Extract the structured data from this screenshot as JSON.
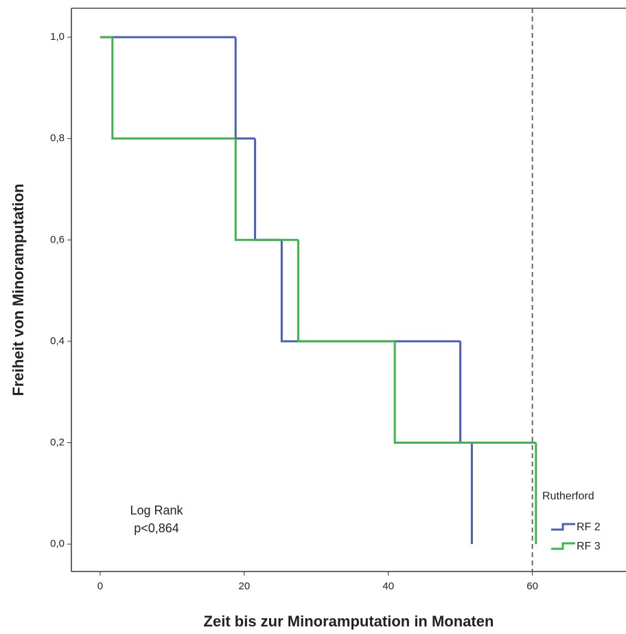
{
  "chart_data": {
    "type": "step",
    "xlabel": "Zeit bis zur Minoramputation in Monaten",
    "ylabel": "Freiheit von Minoramputation",
    "annotation": [
      "Log Rank",
      "p<0,864"
    ],
    "legend_title": "Rutherford",
    "legend_position": "lower right",
    "xlim": [
      -4,
      73
    ],
    "ylim": [
      -0.054,
      1.057
    ],
    "xticks": [
      0,
      20,
      40,
      60
    ],
    "yticks": [
      {
        "value": 0,
        "label": "0,0"
      },
      {
        "value": 0.2,
        "label": "0,2"
      },
      {
        "value": 0.4,
        "label": "0,4"
      },
      {
        "value": 0.6,
        "label": "0,6"
      },
      {
        "value": 0.8,
        "label": "0,8"
      },
      {
        "value": 1,
        "label": "1,0"
      }
    ],
    "reference_line_x": 60,
    "series": [
      {
        "name": "RF 2",
        "color": "#4a5fb8",
        "x": [
          0,
          18.8,
          21.5,
          25.2,
          50,
          51.6
        ],
        "values": [
          1,
          0.8,
          0.6,
          0.4,
          0.2,
          0
        ]
      },
      {
        "name": "RF 3",
        "color": "#3cb54a",
        "x": [
          0,
          1.7,
          18.8,
          27.5,
          40.9,
          60.5
        ],
        "values": [
          1,
          0.8,
          0.6,
          0.4,
          0.2,
          0
        ]
      }
    ]
  }
}
